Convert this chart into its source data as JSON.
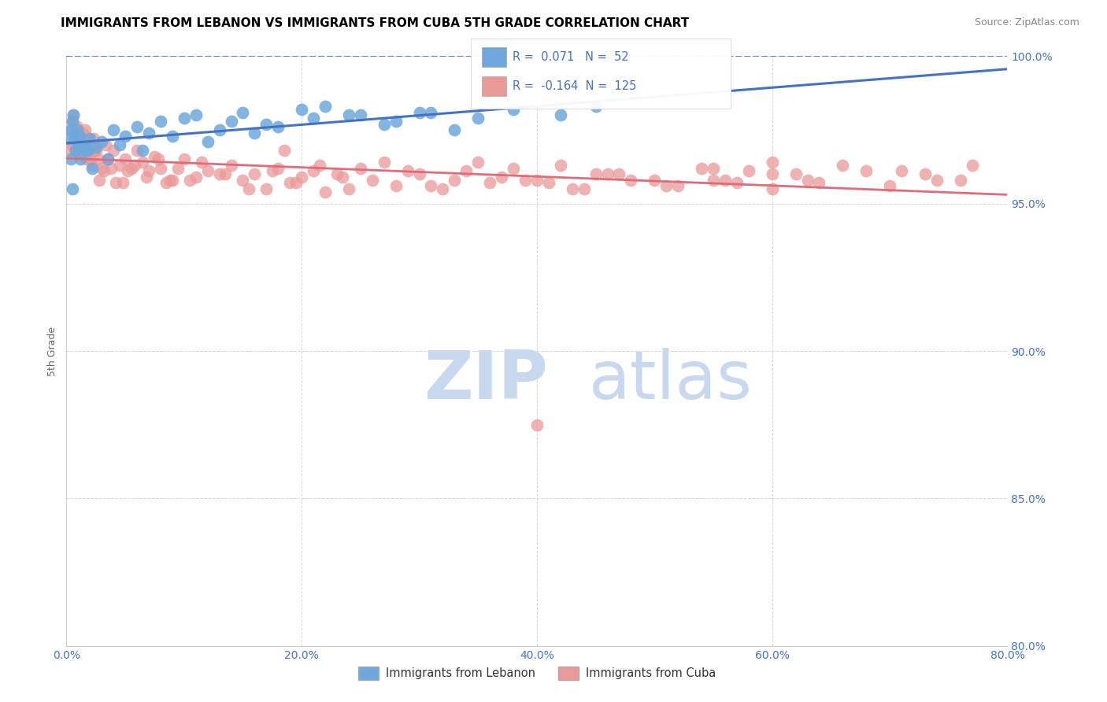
{
  "title": "IMMIGRANTS FROM LEBANON VS IMMIGRANTS FROM CUBA 5TH GRADE CORRELATION CHART",
  "source": "Source: ZipAtlas.com",
  "ylabel": "5th Grade",
  "xlim": [
    0.0,
    80.0
  ],
  "ylim": [
    80.0,
    100.0
  ],
  "xticks": [
    0.0,
    20.0,
    40.0,
    60.0,
    80.0
  ],
  "yticks": [
    80.0,
    85.0,
    90.0,
    95.0,
    100.0
  ],
  "lebanon_R": 0.071,
  "lebanon_N": 52,
  "cuba_R": -0.164,
  "cuba_N": 125,
  "lebanon_color": "#6fa8dc",
  "cuba_color": "#ea9999",
  "trendline_lebanon_color": "#4472c4",
  "trendline_cuba_color": "#e06c7a",
  "grid_color": "#cccccc",
  "background_color": "#ffffff",
  "title_color": "#000000",
  "tick_label_color": "#4472c4",
  "ylabel_color": "#666666",
  "watermark_zip": "ZIP",
  "watermark_atlas": "atlas",
  "watermark_color": "#c8d8ee",
  "legend_label_lebanon": "Immigrants from Lebanon",
  "legend_label_cuba": "Immigrants from Cuba",
  "lebanon_x": [
    0.3,
    0.4,
    0.4,
    0.5,
    0.5,
    0.6,
    0.7,
    0.8,
    0.9,
    1.0,
    1.1,
    1.2,
    1.3,
    1.5,
    1.7,
    1.8,
    2.0,
    2.2,
    2.5,
    3.0,
    3.5,
    4.0,
    4.5,
    5.0,
    6.0,
    6.5,
    7.0,
    8.0,
    9.0,
    10.0,
    11.0,
    12.0,
    13.0,
    14.0,
    15.0,
    16.0,
    17.0,
    18.0,
    20.0,
    21.0,
    22.0,
    24.0,
    25.0,
    27.0,
    28.0,
    30.0,
    31.0,
    33.0,
    35.0,
    38.0,
    42.0,
    45.0
  ],
  "lebanon_y": [
    97.2,
    97.5,
    96.5,
    97.8,
    95.5,
    98.0,
    97.2,
    96.8,
    97.5,
    97.0,
    97.3,
    96.5,
    97.0,
    97.0,
    96.8,
    96.8,
    97.2,
    96.2,
    96.9,
    97.1,
    96.5,
    97.5,
    97.0,
    97.3,
    97.6,
    96.8,
    97.4,
    97.8,
    97.3,
    97.9,
    98.0,
    97.1,
    97.5,
    97.8,
    98.1,
    97.4,
    97.7,
    97.6,
    98.2,
    97.9,
    98.3,
    98.0,
    98.0,
    97.7,
    97.8,
    98.1,
    98.1,
    97.5,
    97.9,
    98.2,
    98.0,
    98.3
  ],
  "cuba_x": [
    0.3,
    0.4,
    0.5,
    0.5,
    0.6,
    0.7,
    0.8,
    0.8,
    0.9,
    1.0,
    1.1,
    1.1,
    1.2,
    1.3,
    1.4,
    1.5,
    1.5,
    1.6,
    1.7,
    1.8,
    1.9,
    2.0,
    2.1,
    2.2,
    2.3,
    2.4,
    2.5,
    2.7,
    2.8,
    3.0,
    3.2,
    3.3,
    3.5,
    3.8,
    4.0,
    4.2,
    4.5,
    4.8,
    5.0,
    5.2,
    5.5,
    5.8,
    6.0,
    6.5,
    6.8,
    7.0,
    7.5,
    7.8,
    8.0,
    8.5,
    8.8,
    9.0,
    9.5,
    10.0,
    10.5,
    11.0,
    11.5,
    12.0,
    13.0,
    13.5,
    14.0,
    15.0,
    15.5,
    16.0,
    17.0,
    17.5,
    18.0,
    18.5,
    19.0,
    19.5,
    20.0,
    21.0,
    21.5,
    22.0,
    23.0,
    23.5,
    24.0,
    25.0,
    26.0,
    27.0,
    28.0,
    29.0,
    30.0,
    31.0,
    32.0,
    33.0,
    34.0,
    35.0,
    36.0,
    37.0,
    38.0,
    39.0,
    40.0,
    41.0,
    42.0,
    43.0,
    44.0,
    45.0,
    46.0,
    47.0,
    48.0,
    50.0,
    51.0,
    52.0,
    54.0,
    55.0,
    56.0,
    57.0,
    58.0,
    60.0,
    60.0,
    62.0,
    63.0,
    64.0,
    66.0,
    68.0,
    70.0,
    71.0,
    73.0,
    74.0,
    76.0,
    77.0,
    40.0,
    55.0,
    60.0
  ],
  "cuba_y": [
    96.8,
    97.5,
    97.8,
    97.0,
    98.0,
    97.5,
    97.2,
    96.8,
    97.6,
    96.8,
    97.0,
    97.1,
    97.3,
    97.1,
    97.4,
    96.9,
    96.6,
    97.5,
    96.5,
    97.2,
    96.8,
    96.5,
    97.0,
    96.3,
    97.2,
    96.8,
    96.8,
    96.5,
    95.8,
    96.2,
    96.1,
    97.0,
    96.5,
    96.2,
    96.8,
    95.7,
    96.3,
    95.7,
    96.5,
    96.1,
    96.2,
    96.3,
    96.8,
    96.4,
    95.9,
    96.1,
    96.6,
    96.5,
    96.2,
    95.7,
    95.8,
    95.8,
    96.2,
    96.5,
    95.8,
    95.9,
    96.4,
    96.1,
    96.0,
    96.0,
    96.3,
    95.8,
    95.5,
    96.0,
    95.5,
    96.1,
    96.2,
    96.8,
    95.7,
    95.7,
    95.9,
    96.1,
    96.3,
    95.4,
    96.0,
    95.9,
    95.5,
    96.2,
    95.8,
    96.4,
    95.6,
    96.1,
    96.0,
    95.6,
    95.5,
    95.8,
    96.1,
    96.4,
    95.7,
    95.9,
    96.2,
    95.8,
    95.8,
    95.7,
    96.3,
    95.5,
    95.5,
    96.0,
    96.0,
    96.0,
    95.8,
    95.8,
    95.6,
    95.6,
    96.2,
    95.8,
    95.8,
    95.7,
    96.1,
    95.5,
    96.0,
    96.0,
    95.8,
    95.7,
    96.3,
    96.1,
    95.6,
    96.1,
    96.0,
    95.8,
    95.8,
    96.3,
    87.5,
    96.2,
    96.4
  ]
}
